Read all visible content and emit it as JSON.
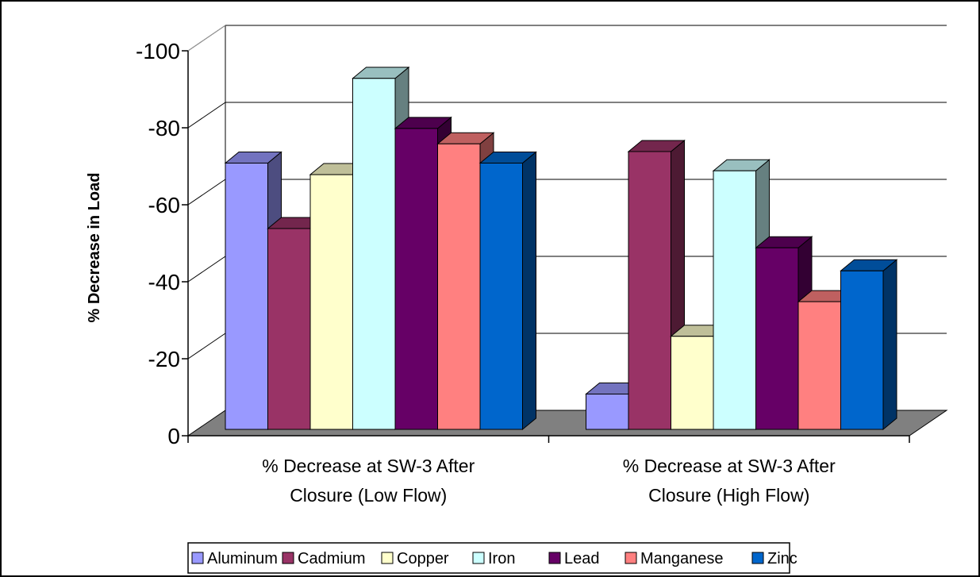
{
  "chart_data": {
    "type": "bar",
    "title": "",
    "xlabel": "",
    "ylabel": "% Decrease in Load",
    "ylim": [
      0,
      -100
    ],
    "yticks": [
      0,
      -20,
      -40,
      -60,
      -80,
      -100
    ],
    "y_tick_labels": [
      "0",
      "-20",
      "-40",
      "-60",
      "-80",
      "-100"
    ],
    "categories": [
      [
        "% Decrease at SW-3 After",
        "Closure (Low Flow)"
      ],
      [
        "% Decrease at SW-3 After",
        "Closure (High Flow)"
      ]
    ],
    "series": [
      {
        "name": "Aluminum",
        "values": [
          -70,
          -10
        ],
        "color": "#9999FF"
      },
      {
        "name": "Cadmium",
        "values": [
          -53,
          -73
        ],
        "color": "#993366"
      },
      {
        "name": "Copper",
        "values": [
          -67,
          -25
        ],
        "color": "#FFFFCC"
      },
      {
        "name": "Iron",
        "values": [
          -92,
          -68
        ],
        "color": "#CCFFFF"
      },
      {
        "name": "Lead",
        "values": [
          -79,
          -48
        ],
        "color": "#660066"
      },
      {
        "name": "Manganese",
        "values": [
          -75,
          -34
        ],
        "color": "#FF8080"
      },
      {
        "name": "Zinc",
        "values": [
          -70,
          -42
        ],
        "color": "#0066CC"
      }
    ],
    "grid": true,
    "three_d": true,
    "legend_position": "bottom"
  }
}
